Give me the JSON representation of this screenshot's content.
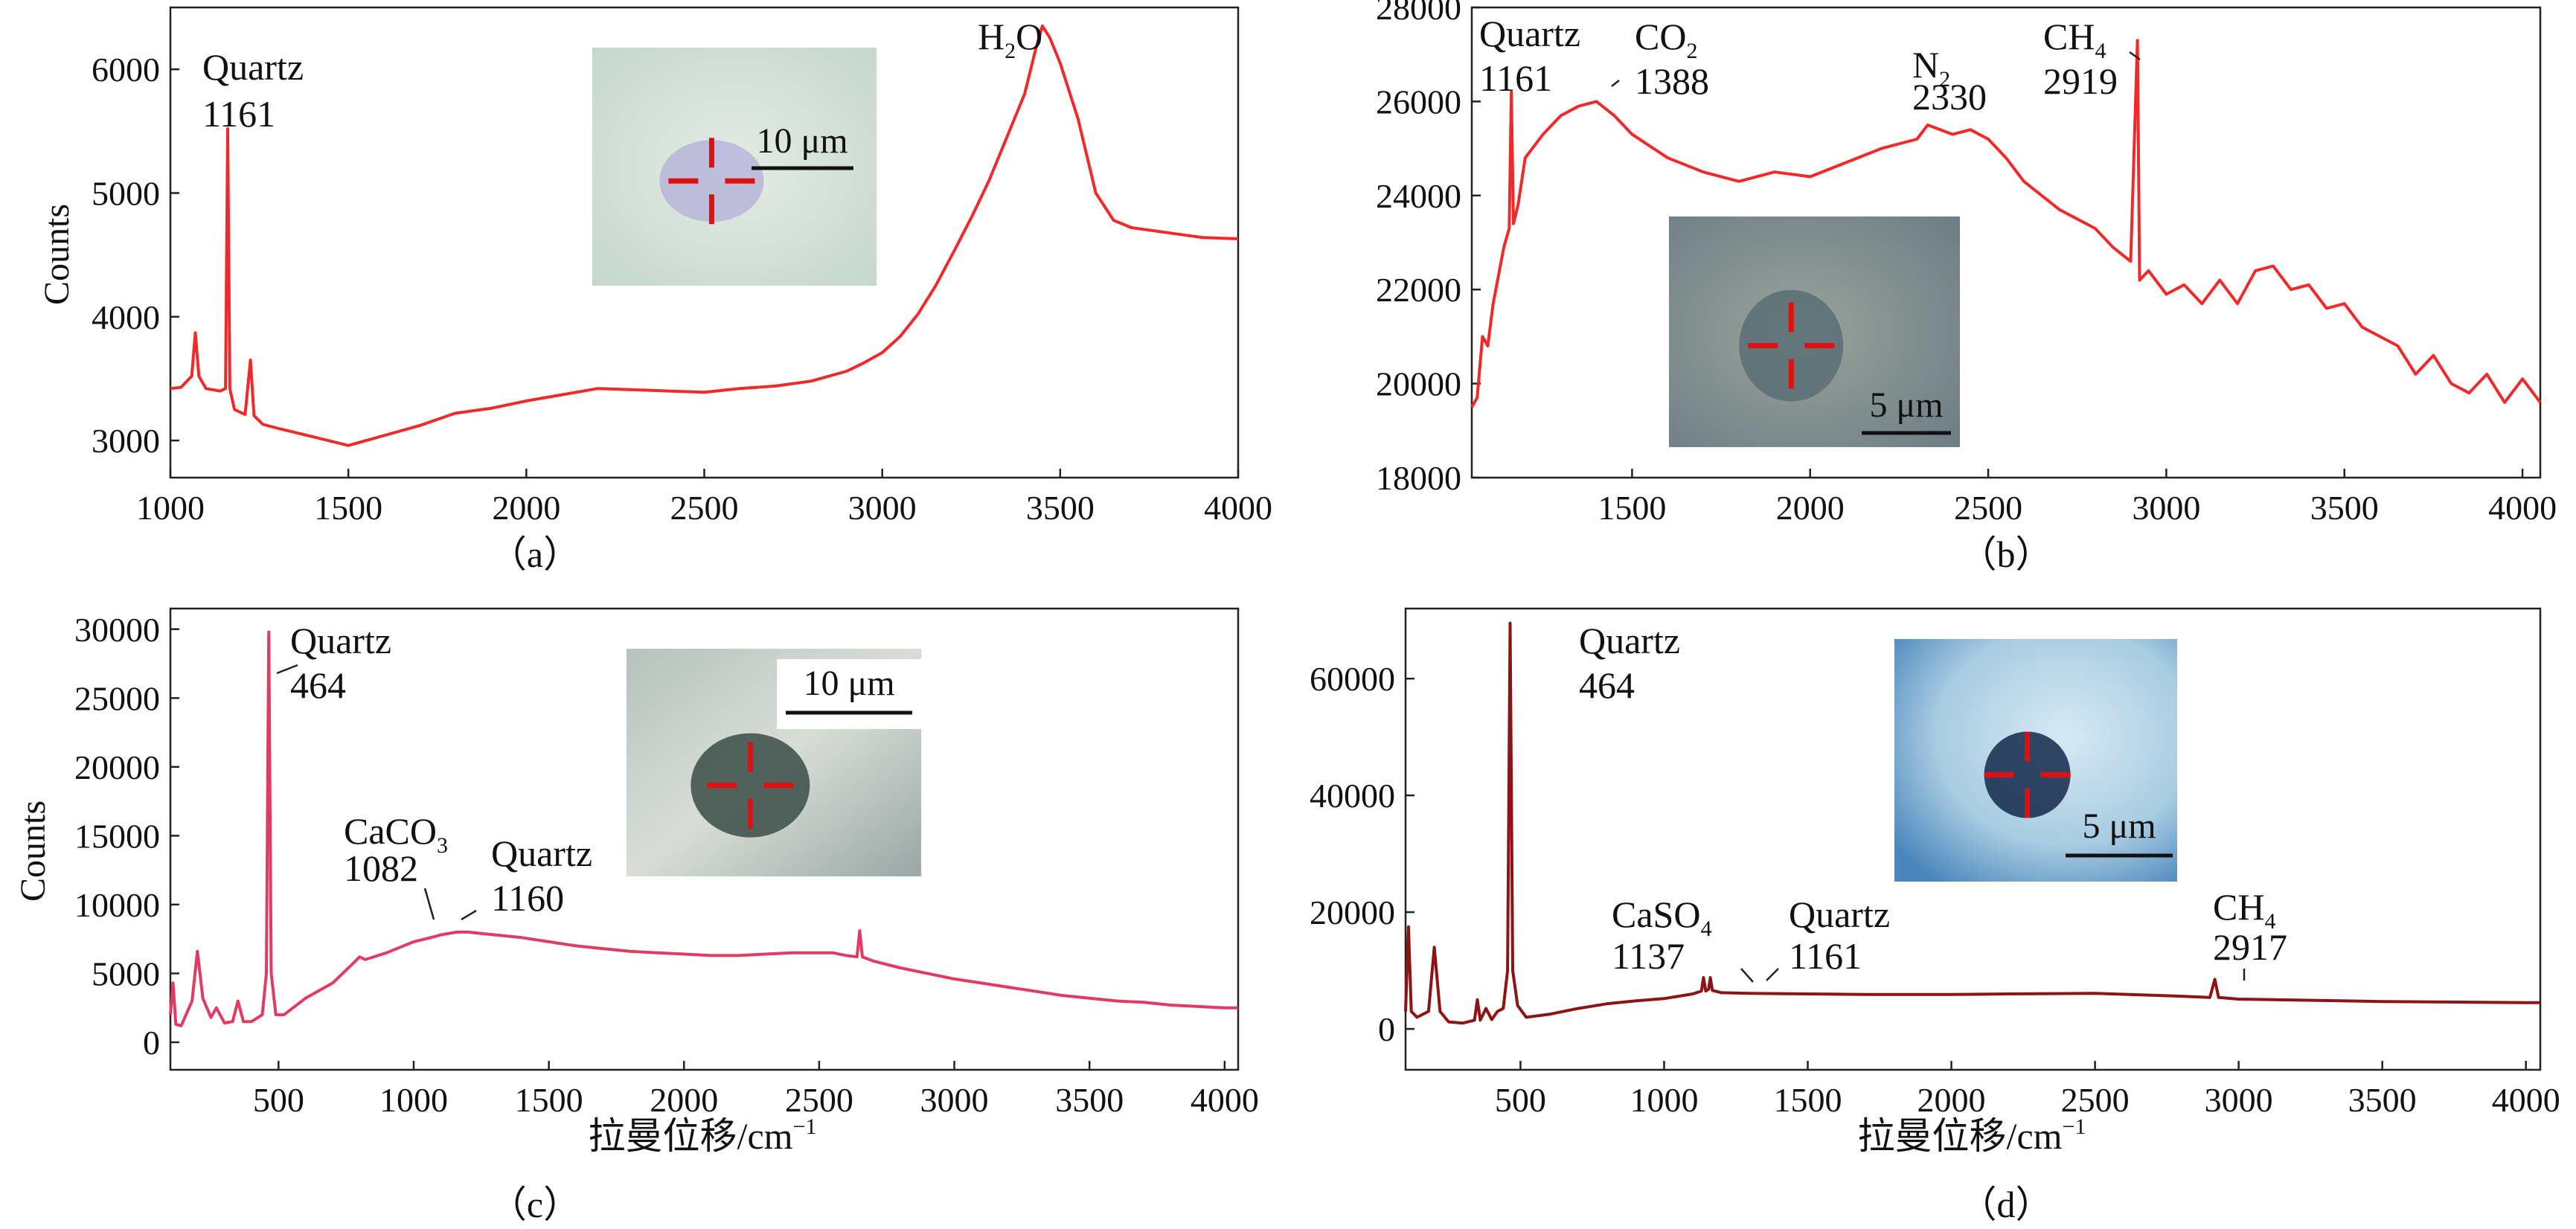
{
  "chart_data": [
    {
      "id": "a",
      "type": "line",
      "panel_label": "（a）",
      "xlabel": "",
      "ylabel": "Counts",
      "xlim": [
        1000,
        4000
      ],
      "ylim": [
        2700,
        6500
      ],
      "xticks": [
        1000,
        1500,
        2000,
        2500,
        3000,
        3500,
        4000
      ],
      "yticks": [
        3000,
        4000,
        5000,
        6000
      ],
      "grid": false,
      "series": [
        {
          "color": "#f02a2a",
          "x": [
            1000,
            1030,
            1060,
            1070,
            1080,
            1100,
            1140,
            1155,
            1161,
            1167,
            1180,
            1210,
            1225,
            1235,
            1260,
            1300,
            1400,
            1500,
            1600,
            1700,
            1800,
            1900,
            2000,
            2100,
            2200,
            2300,
            2400,
            2500,
            2600,
            2700,
            2800,
            2900,
            2950,
            3000,
            3050,
            3100,
            3150,
            3200,
            3250,
            3300,
            3350,
            3400,
            3430,
            3450,
            3470,
            3500,
            3550,
            3600,
            3650,
            3700,
            3800,
            3900,
            4000
          ],
          "y": [
            3420,
            3430,
            3520,
            3870,
            3520,
            3420,
            3400,
            3420,
            5520,
            3420,
            3250,
            3210,
            3650,
            3200,
            3130,
            3100,
            3030,
            2960,
            3040,
            3120,
            3220,
            3260,
            3320,
            3370,
            3420,
            3410,
            3400,
            3390,
            3420,
            3440,
            3480,
            3560,
            3630,
            3710,
            3840,
            4020,
            4250,
            4520,
            4800,
            5100,
            5450,
            5800,
            6150,
            6350,
            6260,
            6050,
            5600,
            5000,
            4780,
            4720,
            4680,
            4640,
            4630
          ]
        }
      ],
      "annotations": [
        {
          "text": "Quartz",
          "value": "1161",
          "x": 1161,
          "y": 5520
        },
        {
          "text": "H",
          "subscript": "2",
          "suffix": "O",
          "x": 3445,
          "y": 6350
        }
      ],
      "inset": {
        "scale_bar": "10 μm"
      }
    },
    {
      "id": "b",
      "type": "line",
      "panel_label": "（b）",
      "xlabel": "",
      "ylabel": "",
      "xlim": [
        1050,
        4050
      ],
      "ylim": [
        18000,
        28000
      ],
      "xticks": [
        1500,
        2000,
        2500,
        3000,
        3500,
        4000
      ],
      "yticks": [
        18000,
        20000,
        22000,
        24000,
        26000,
        28000
      ],
      "grid": false,
      "series": [
        {
          "color": "#f02a2a",
          "x": [
            1050,
            1065,
            1080,
            1095,
            1110,
            1125,
            1140,
            1155,
            1161,
            1167,
            1180,
            1200,
            1250,
            1300,
            1350,
            1400,
            1450,
            1500,
            1600,
            1700,
            1800,
            1900,
            2000,
            2100,
            2200,
            2300,
            2330,
            2400,
            2450,
            2500,
            2550,
            2600,
            2700,
            2800,
            2850,
            2900,
            2919,
            2925,
            2950,
            3000,
            3050,
            3100,
            3150,
            3200,
            3250,
            3300,
            3350,
            3400,
            3450,
            3500,
            3550,
            3600,
            3650,
            3700,
            3750,
            3800,
            3850,
            3900,
            3950,
            4000,
            4050
          ],
          "y": [
            19500,
            19700,
            21000,
            20800,
            21700,
            22300,
            22900,
            23300,
            26200,
            23400,
            23800,
            24800,
            25300,
            25700,
            25900,
            26000,
            25700,
            25300,
            24800,
            24500,
            24300,
            24500,
            24400,
            24700,
            25000,
            25200,
            25500,
            25300,
            25400,
            25200,
            24800,
            24300,
            23700,
            23300,
            22900,
            22600,
            27300,
            22200,
            22400,
            21900,
            22100,
            21700,
            22200,
            21700,
            22400,
            22500,
            22000,
            22100,
            21600,
            21700,
            21200,
            21000,
            20800,
            20200,
            20600,
            20000,
            19800,
            20200,
            19600,
            20100,
            19600
          ]
        }
      ],
      "annotations": [
        {
          "text": "Quartz",
          "value": "1161",
          "x": 1161,
          "y": 26200
        },
        {
          "text": "CO",
          "subscript": "2",
          "value": "1388",
          "x": 1388,
          "y": 26100
        },
        {
          "text": "N",
          "subscript": "2",
          "value": "2330",
          "x": 2330,
          "y": 25500
        },
        {
          "text": "CH",
          "subscript": "4",
          "value": "2919",
          "x": 2919,
          "y": 27300
        }
      ],
      "inset": {
        "scale_bar": "5 μm"
      }
    },
    {
      "id": "c",
      "type": "line",
      "panel_label": "（c）",
      "xlabel": "拉曼位移/cm",
      "xlabel_superscript": "−1",
      "ylabel": "Counts",
      "xlim": [
        100,
        4050
      ],
      "ylim": [
        -2000,
        31500
      ],
      "xticks": [
        500,
        1000,
        1500,
        2000,
        2500,
        3000,
        3500,
        4000
      ],
      "yticks": [
        0,
        5000,
        10000,
        15000,
        20000,
        25000,
        30000
      ],
      "grid": false,
      "series": [
        {
          "color": "#e03b62",
          "x": [
            100,
            110,
            120,
            140,
            180,
            200,
            220,
            250,
            270,
            300,
            330,
            350,
            370,
            400,
            440,
            455,
            464,
            473,
            490,
            520,
            600,
            700,
            780,
            800,
            820,
            900,
            1000,
            1082,
            1100,
            1160,
            1200,
            1300,
            1400,
            1500,
            1600,
            1700,
            1800,
            1900,
            2000,
            2100,
            2200,
            2300,
            2400,
            2500,
            2550,
            2600,
            2640,
            2650,
            2660,
            2700,
            2800,
            2900,
            3000,
            3100,
            3200,
            3300,
            3400,
            3500,
            3600,
            3700,
            3800,
            3900,
            4000,
            4050
          ],
          "y": [
            2000,
            4300,
            1300,
            1200,
            3000,
            6600,
            3200,
            1800,
            2500,
            1400,
            1500,
            3000,
            1500,
            1500,
            2000,
            5000,
            29800,
            5000,
            2000,
            2000,
            3200,
            4300,
            5800,
            6200,
            6000,
            6500,
            7300,
            7700,
            7800,
            8000,
            8000,
            7800,
            7600,
            7300,
            7000,
            6800,
            6600,
            6500,
            6400,
            6300,
            6300,
            6400,
            6500,
            6500,
            6500,
            6300,
            6200,
            8100,
            6200,
            5900,
            5400,
            5000,
            4600,
            4300,
            4000,
            3700,
            3400,
            3200,
            3000,
            2900,
            2700,
            2600,
            2500,
            2500
          ]
        }
      ],
      "annotations": [
        {
          "text": "Quartz",
          "value": "464",
          "x": 464,
          "y": 29800
        },
        {
          "text": "CaCO",
          "subscript": "3",
          "value": "1082",
          "x": 1082,
          "y": 7700
        },
        {
          "text": "Quartz",
          "value": "1160",
          "x": 1160,
          "y": 8000
        }
      ],
      "inset": {
        "scale_bar": "10 μm"
      }
    },
    {
      "id": "d",
      "type": "line",
      "panel_label": "（d）",
      "xlabel": "拉曼位移/cm",
      "xlabel_superscript": "−1",
      "ylabel": "",
      "xlim": [
        100,
        4050
      ],
      "ylim": [
        -7000,
        72000
      ],
      "xticks": [
        500,
        1000,
        1500,
        2000,
        2500,
        3000,
        3500,
        4000
      ],
      "yticks": [
        0,
        20000,
        40000,
        60000
      ],
      "grid": false,
      "series": [
        {
          "color": "#8c1414",
          "x": [
            100,
            110,
            120,
            140,
            180,
            200,
            220,
            250,
            300,
            340,
            350,
            360,
            380,
            400,
            420,
            440,
            455,
            464,
            473,
            490,
            520,
            600,
            700,
            800,
            900,
            1000,
            1100,
            1130,
            1137,
            1145,
            1155,
            1161,
            1168,
            1200,
            1300,
            1500,
            1700,
            2000,
            2200,
            2500,
            2800,
            2900,
            2917,
            2930,
            3000,
            3500,
            4000,
            4050
          ],
          "y": [
            3000,
            17500,
            3000,
            2000,
            3000,
            14000,
            3000,
            1200,
            1000,
            1500,
            5000,
            1500,
            3500,
            1600,
            3000,
            3500,
            10000,
            69500,
            10000,
            4000,
            2000,
            2500,
            3500,
            4300,
            4800,
            5200,
            6000,
            6500,
            8800,
            6500,
            6800,
            8800,
            6600,
            6200,
            6100,
            6000,
            5900,
            5900,
            6000,
            6100,
            5600,
            5400,
            8500,
            5400,
            5100,
            4700,
            4500,
            4500
          ]
        }
      ],
      "annotations": [
        {
          "text": "Quartz",
          "value": "464",
          "x": 464,
          "y": 69500
        },
        {
          "text": "CaSO",
          "subscript": "4",
          "value": "1137",
          "x": 1137,
          "y": 8800
        },
        {
          "text": "Quartz",
          "value": "1161",
          "x": 1161,
          "y": 8800
        },
        {
          "text": "CH",
          "subscript": "4",
          "value": "2917",
          "x": 2917,
          "y": 8500
        }
      ],
      "inset": {
        "scale_bar": "5 μm"
      }
    }
  ]
}
